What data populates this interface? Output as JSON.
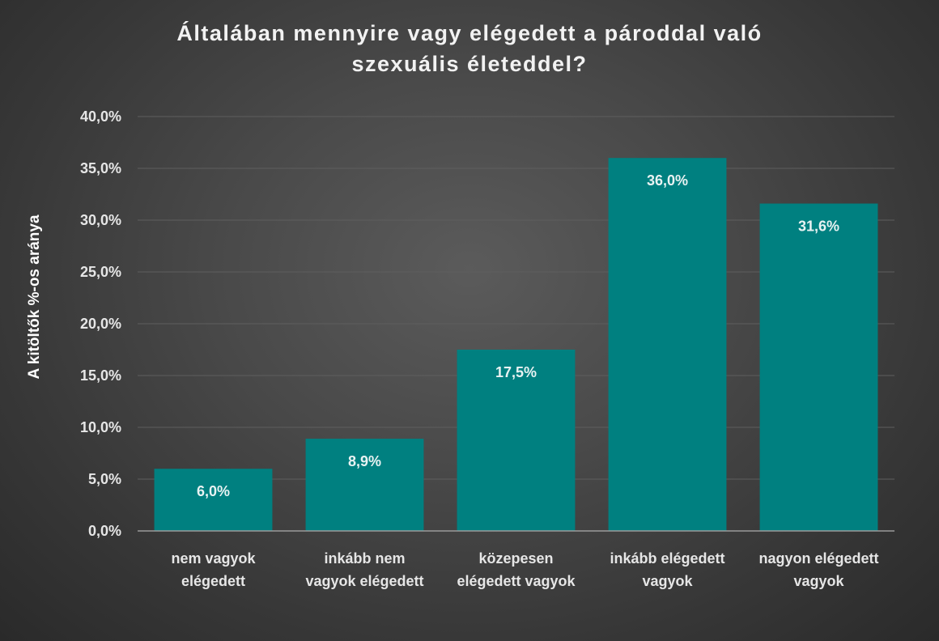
{
  "chart_data": {
    "type": "bar",
    "title": "Általában mennyire vagy elégedett a pároddal való szexuális életeddel?",
    "title_lines": [
      "Általában mennyire vagy elégedett a pároddal való",
      "szexuális életeddel?"
    ],
    "xlabel": "",
    "ylabel": "A kitöltők %-os aránya",
    "categories": [
      "nem vagyok elégedett",
      "inkább nem vagyok elégedett",
      "közepesen elégedett vagyok",
      "inkább elégedett vagyok",
      "nagyon elégedett vagyok"
    ],
    "category_lines": [
      [
        "nem vagyok",
        "elégedett"
      ],
      [
        "inkább nem",
        "vagyok elégedett"
      ],
      [
        "közepesen",
        "elégedett vagyok"
      ],
      [
        "inkább elégedett",
        "vagyok"
      ],
      [
        "nagyon elégedett",
        "vagyok"
      ]
    ],
    "values": [
      6.0,
      8.9,
      17.5,
      36.0,
      31.6
    ],
    "value_labels": [
      "6,0%",
      "8,9%",
      "17,5%",
      "36,0%",
      "31,6%"
    ],
    "ylim": [
      0,
      40
    ],
    "y_ticks": [
      0,
      5,
      10,
      15,
      20,
      25,
      30,
      35,
      40
    ],
    "y_tick_labels": [
      "0,0%",
      "5,0%",
      "10,0%",
      "15,0%",
      "20,0%",
      "25,0%",
      "30,0%",
      "35,0%",
      "40,0%"
    ],
    "grid": true,
    "legend": "none",
    "colors": {
      "bar": "#008080",
      "background": "#404040",
      "gridline": "#5e5e5e",
      "axis": "#9a9a9a",
      "text": "#ffffff"
    }
  }
}
